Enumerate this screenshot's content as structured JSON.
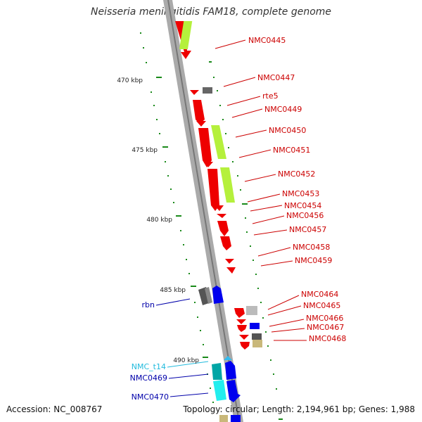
{
  "title": "Neisseria meningitidis FAM18, complete genome",
  "footer": {
    "accession": "Accession: NC_008767",
    "summary": "Topology: circular; Length: 2,194,961 bp; Genes: 1,988"
  },
  "scale_labels": [
    "470 kbp",
    "475 kbp",
    "480 kbp",
    "485 kbp",
    "490 kbp"
  ],
  "gene_labels": [
    {
      "text": "NMC0445",
      "color": "#cc0000"
    },
    {
      "text": "NMC0447",
      "color": "#cc0000"
    },
    {
      "text": "rte5",
      "color": "#cc0000"
    },
    {
      "text": "NMC0449",
      "color": "#cc0000"
    },
    {
      "text": "NMC0450",
      "color": "#cc0000"
    },
    {
      "text": "NMC0451",
      "color": "#cc0000"
    },
    {
      "text": "NMC0452",
      "color": "#cc0000"
    },
    {
      "text": "NMC0453",
      "color": "#cc0000"
    },
    {
      "text": "NMC0454",
      "color": "#cc0000"
    },
    {
      "text": "NMC0456",
      "color": "#cc0000"
    },
    {
      "text": "NMC0457",
      "color": "#cc0000"
    },
    {
      "text": "NMC0458",
      "color": "#cc0000"
    },
    {
      "text": "NMC0459",
      "color": "#cc0000"
    },
    {
      "text": "NMC0464",
      "color": "#cc0000"
    },
    {
      "text": "NMC0465",
      "color": "#cc0000"
    },
    {
      "text": "NMC0466",
      "color": "#cc0000"
    },
    {
      "text": "NMC0467",
      "color": "#cc0000"
    },
    {
      "text": "NMC0468",
      "color": "#cc0000"
    },
    {
      "text": "rbn",
      "color": "#0000aa"
    },
    {
      "text": "NMC_t14",
      "color": "#22bbdd"
    },
    {
      "text": "NMC0469",
      "color": "#0000aa"
    },
    {
      "text": "NMC0470",
      "color": "#0000aa"
    }
  ],
  "colors": {
    "backbone": "#999999",
    "red_gene": "#ff0000",
    "lime_feature": "#b5f03c",
    "green_ticks": "#1a8a1a"
  }
}
